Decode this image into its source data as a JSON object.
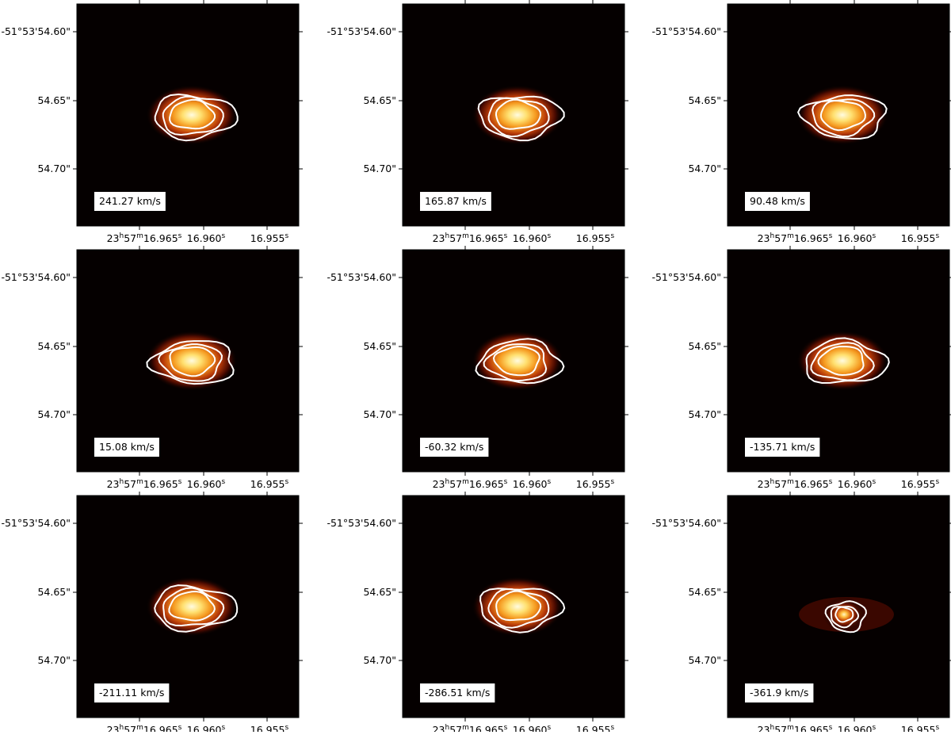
{
  "y_tick_labels": [
    "-51°53'54.60\"",
    "54.65\"",
    "54.70\""
  ],
  "x_tick_labels": [
    [
      "23",
      "h",
      "57",
      "m",
      "16.965",
      "s"
    ],
    [
      "16.960",
      "s"
    ],
    [
      "16.955",
      "s"
    ]
  ],
  "panels": [
    {
      "label": "241.27 km/s"
    },
    {
      "label": "165.87 km/s"
    },
    {
      "label": "90.48 km/s"
    },
    {
      "label": "15.08 km/s"
    },
    {
      "label": "-60.32 km/s"
    },
    {
      "label": "-135.71 km/s"
    },
    {
      "label": "-211.11 km/s"
    },
    {
      "label": "-286.51 km/s"
    },
    {
      "label": "-361.9 km/s"
    }
  ]
}
